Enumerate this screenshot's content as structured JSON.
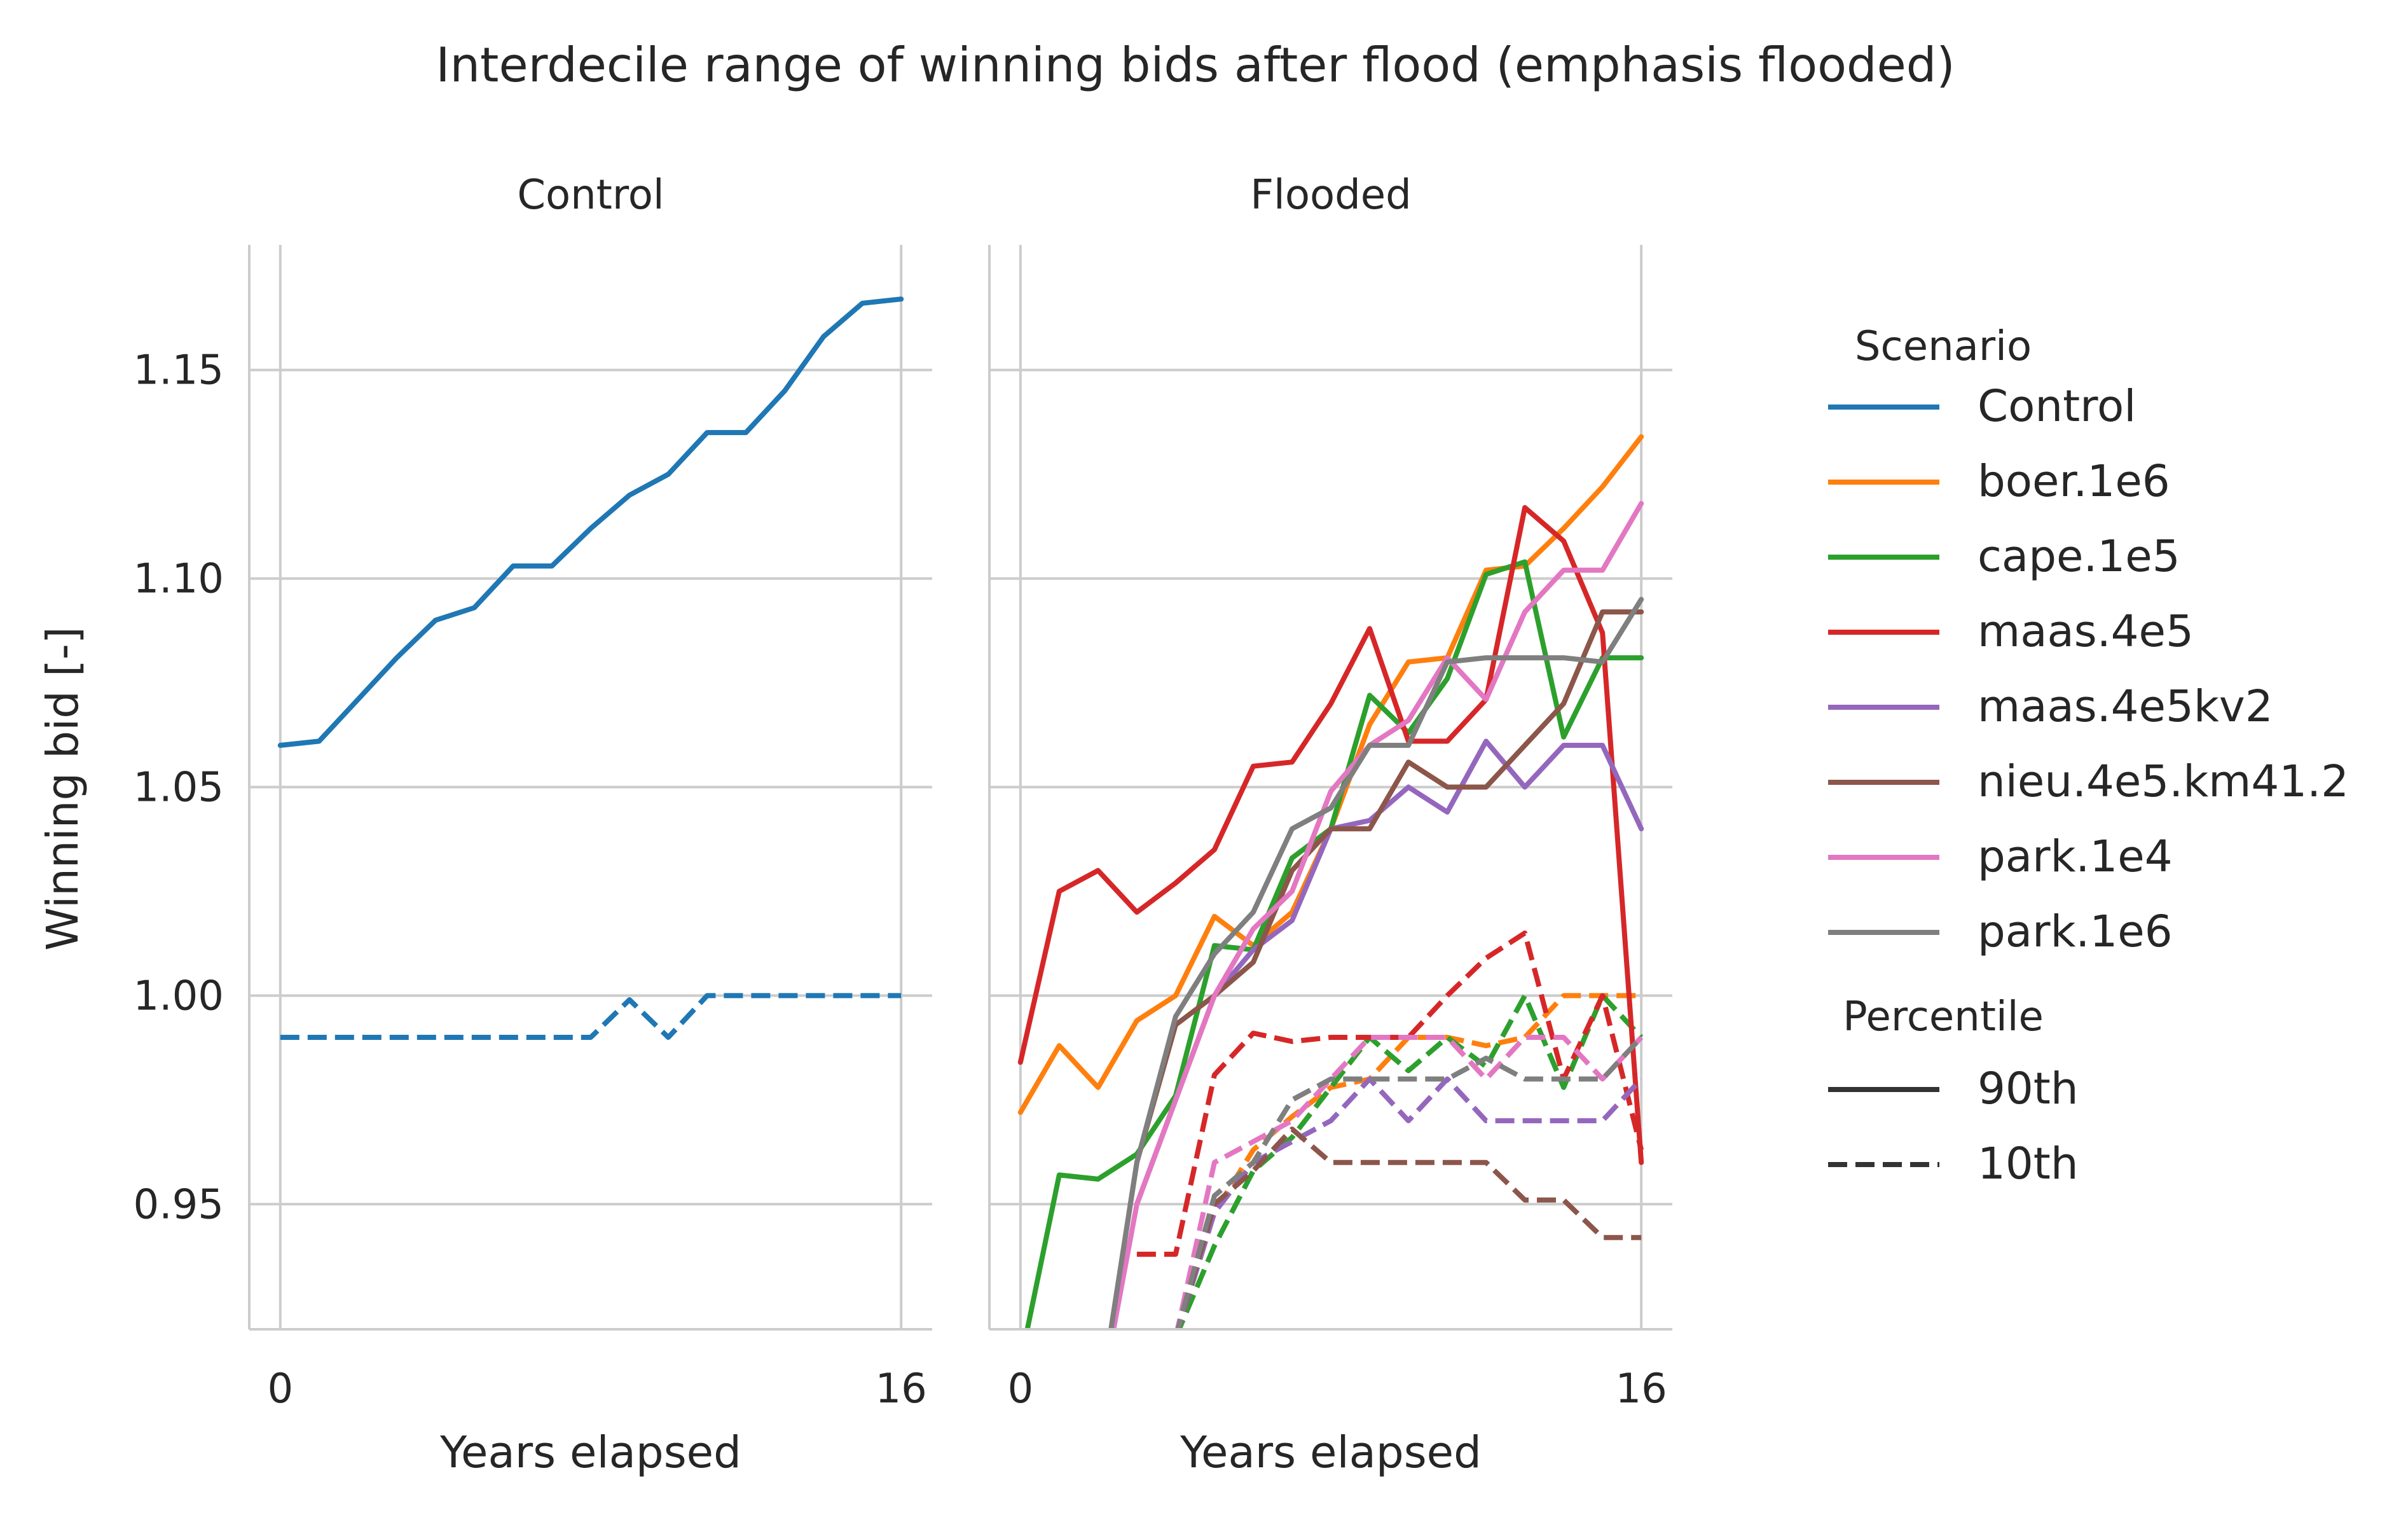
{
  "chart_data": {
    "type": "line",
    "title": "Interdecile range of winning bids after flood (emphasis flooded)",
    "ylabel": "Winning bid [-]",
    "xlabel": "Years elapsed",
    "xlim": [
      -0.8,
      16.8
    ],
    "ylim": [
      0.92,
      1.18
    ],
    "x_ticks": [
      "0",
      "16"
    ],
    "y_ticks": [
      "0.95",
      "1.00",
      "1.05",
      "1.10",
      "1.15"
    ],
    "grid": true,
    "legend_position": "right",
    "legend": {
      "hue_title": "Scenario",
      "style_title": "Percentile",
      "styles": [
        {
          "label": "90th",
          "dash": "solid"
        },
        {
          "label": "10th",
          "dash": "dashed"
        }
      ]
    },
    "scenarios": [
      {
        "name": "Control",
        "color": "#1f77b4"
      },
      {
        "name": "boer.1e6",
        "color": "#ff7f0e"
      },
      {
        "name": "cape.1e5",
        "color": "#2ca02c"
      },
      {
        "name": "maas.4e5",
        "color": "#d62728"
      },
      {
        "name": "maas.4e5kv2",
        "color": "#9467bd"
      },
      {
        "name": "nieu.4e5.km41.2",
        "color": "#8c564b"
      },
      {
        "name": "park.1e4",
        "color": "#e377c2"
      },
      {
        "name": "park.1e6",
        "color": "#7f7f7f"
      }
    ],
    "facets": [
      {
        "title": "Control",
        "series": [
          {
            "scenario": "Control",
            "percentile": "90th",
            "x": [
              0,
              1,
              2,
              3,
              4,
              5,
              6,
              7,
              8,
              9,
              10,
              11,
              12,
              13,
              14,
              15,
              16
            ],
            "values": [
              1.06,
              1.061,
              1.071,
              1.081,
              1.09,
              1.093,
              1.103,
              1.103,
              1.112,
              1.12,
              1.125,
              1.135,
              1.135,
              1.145,
              1.158,
              1.166,
              1.167
            ]
          },
          {
            "scenario": "Control",
            "percentile": "10th",
            "x": [
              0,
              1,
              2,
              3,
              4,
              5,
              6,
              7,
              8,
              9,
              10,
              11,
              12,
              13,
              14,
              15,
              16
            ],
            "values": [
              0.99,
              0.99,
              0.99,
              0.99,
              0.99,
              0.99,
              0.99,
              0.99,
              0.99,
              0.999,
              0.99,
              1.0,
              1.0,
              1.0,
              1.0,
              1.0,
              1.0
            ]
          }
        ]
      },
      {
        "title": "Flooded",
        "series": [
          {
            "scenario": "boer.1e6",
            "percentile": "90th",
            "x": [
              0,
              1,
              2,
              3,
              4,
              5,
              6,
              7,
              8,
              9,
              10,
              11,
              12,
              13,
              14,
              15,
              16
            ],
            "values": [
              0.972,
              0.988,
              0.978,
              0.994,
              1.0,
              1.019,
              1.012,
              1.02,
              1.04,
              1.065,
              1.08,
              1.081,
              1.102,
              1.103,
              1.112,
              1.122,
              1.134
            ]
          },
          {
            "scenario": "boer.1e6",
            "percentile": "10th",
            "x": [
              4,
              5,
              6,
              7,
              8,
              9,
              10,
              11,
              12,
              13,
              14,
              15,
              16
            ],
            "values": [
              0.918,
              0.948,
              0.963,
              0.971,
              0.978,
              0.98,
              0.99,
              0.99,
              0.988,
              0.99,
              1.0,
              1.0,
              1.0
            ]
          },
          {
            "scenario": "cape.1e5",
            "percentile": "90th",
            "x": [
              0,
              1,
              2,
              3,
              4,
              5,
              6,
              7,
              8,
              9,
              10,
              11,
              12,
              13,
              14,
              15,
              16
            ],
            "values": [
              0.912,
              0.957,
              0.956,
              0.962,
              0.976,
              1.012,
              1.011,
              1.033,
              1.04,
              1.072,
              1.063,
              1.076,
              1.101,
              1.104,
              1.062,
              1.081,
              1.081
            ]
          },
          {
            "scenario": "cape.1e5",
            "percentile": "10th",
            "x": [
              4,
              5,
              6,
              7,
              8,
              9,
              10,
              11,
              12,
              13,
              14,
              15,
              16
            ],
            "values": [
              0.918,
              0.94,
              0.958,
              0.966,
              0.978,
              0.99,
              0.982,
              0.99,
              0.983,
              1.0,
              0.978,
              1.0,
              0.99
            ]
          },
          {
            "scenario": "maas.4e5",
            "percentile": "90th",
            "x": [
              0,
              1,
              2,
              3,
              4,
              5,
              6,
              7,
              8,
              9,
              10,
              11,
              12,
              13,
              14,
              15,
              16
            ],
            "values": [
              0.984,
              1.025,
              1.03,
              1.02,
              1.027,
              1.035,
              1.055,
              1.056,
              1.07,
              1.088,
              1.061,
              1.061,
              1.071,
              1.117,
              1.109,
              1.087,
              0.96
            ]
          },
          {
            "scenario": "maas.4e5",
            "percentile": "10th",
            "x": [
              3,
              4,
              5,
              6,
              7,
              8,
              9,
              10,
              11,
              12,
              13,
              14,
              15,
              16
            ],
            "values": [
              0.938,
              0.938,
              0.981,
              0.991,
              0.989,
              0.99,
              0.99,
              0.99,
              1.0,
              1.009,
              1.015,
              0.98,
              1.0,
              0.963
            ]
          },
          {
            "scenario": "maas.4e5kv2",
            "percentile": "90th",
            "x": [
              3,
              4,
              5,
              6,
              7,
              8,
              9,
              10,
              11,
              12,
              13,
              14,
              15,
              16
            ],
            "values": [
              0.95,
              0.975,
              1.0,
              1.011,
              1.018,
              1.04,
              1.042,
              1.05,
              1.044,
              1.061,
              1.05,
              1.06,
              1.06,
              1.04
            ]
          },
          {
            "scenario": "maas.4e5kv2",
            "percentile": "10th",
            "x": [
              4,
              5,
              6,
              7,
              8,
              9,
              10,
              11,
              12,
              13,
              14,
              15,
              16
            ],
            "values": [
              0.918,
              0.948,
              0.96,
              0.965,
              0.97,
              0.98,
              0.97,
              0.98,
              0.97,
              0.97,
              0.97,
              0.97,
              0.98
            ]
          },
          {
            "scenario": "nieu.4e5.km41.2",
            "percentile": "90th",
            "x": [
              2,
              3,
              4,
              5,
              6,
              7,
              8,
              9,
              10,
              11,
              12,
              13,
              14,
              15,
              16
            ],
            "values": [
              0.9,
              0.96,
              0.993,
              1.0,
              1.008,
              1.03,
              1.04,
              1.04,
              1.056,
              1.05,
              1.05,
              1.06,
              1.07,
              1.092,
              1.092
            ]
          },
          {
            "scenario": "nieu.4e5.km41.2",
            "percentile": "10th",
            "x": [
              4,
              5,
              6,
              7,
              8,
              9,
              10,
              11,
              12,
              13,
              14,
              15,
              16
            ],
            "values": [
              0.918,
              0.95,
              0.958,
              0.968,
              0.96,
              0.96,
              0.96,
              0.96,
              0.96,
              0.951,
              0.951,
              0.942,
              0.942
            ]
          },
          {
            "scenario": "park.1e4",
            "percentile": "90th",
            "x": [
              2,
              3,
              4,
              5,
              6,
              7,
              8,
              9,
              10,
              11,
              12,
              13,
              14,
              15,
              16
            ],
            "values": [
              0.9,
              0.95,
              0.975,
              1.0,
              1.016,
              1.025,
              1.049,
              1.06,
              1.066,
              1.081,
              1.071,
              1.092,
              1.102,
              1.102,
              1.118
            ]
          },
          {
            "scenario": "park.1e4",
            "percentile": "10th",
            "x": [
              4,
              5,
              6,
              7,
              8,
              9,
              10,
              11,
              12,
              13,
              14,
              15,
              16
            ],
            "values": [
              0.918,
              0.96,
              0.965,
              0.97,
              0.98,
              0.99,
              0.99,
              0.99,
              0.98,
              0.99,
              0.99,
              0.98,
              0.99
            ]
          },
          {
            "scenario": "park.1e6",
            "percentile": "90th",
            "x": [
              2,
              3,
              4,
              5,
              6,
              7,
              8,
              9,
              10,
              11,
              12,
              13,
              14,
              15,
              16
            ],
            "values": [
              0.9,
              0.96,
              0.995,
              1.01,
              1.02,
              1.04,
              1.045,
              1.06,
              1.06,
              1.08,
              1.081,
              1.081,
              1.081,
              1.08,
              1.095
            ]
          },
          {
            "scenario": "park.1e6",
            "percentile": "10th",
            "x": [
              4,
              5,
              6,
              7,
              8,
              9,
              10,
              11,
              12,
              13,
              14,
              15,
              16
            ],
            "values": [
              0.918,
              0.952,
              0.96,
              0.975,
              0.98,
              0.98,
              0.98,
              0.98,
              0.985,
              0.98,
              0.98,
              0.98,
              0.99
            ]
          }
        ]
      }
    ]
  }
}
